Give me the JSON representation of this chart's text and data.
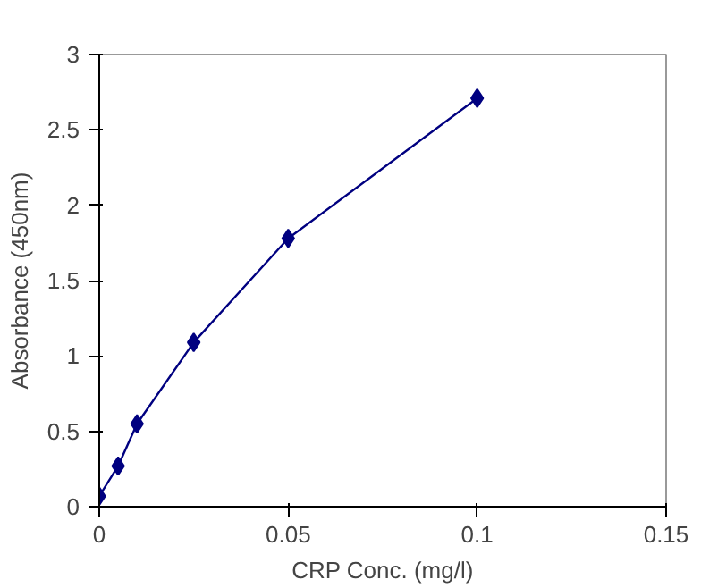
{
  "chart_data": {
    "type": "line",
    "xlabel": "CRP Conc. (mg/l)",
    "ylabel": "Absorbance (450nm)",
    "x": [
      0,
      0.005,
      0.01,
      0.025,
      0.05,
      0.1
    ],
    "series": [
      {
        "color": "#000080",
        "values": [
          0.07,
          0.27,
          0.55,
          1.09,
          1.78,
          2.71
        ]
      }
    ],
    "xlim": [
      0,
      0.15
    ],
    "xticks": [
      0,
      0.05,
      0.1,
      0.15
    ],
    "ylim": [
      0,
      3
    ],
    "yticks": [
      0,
      0.5,
      1,
      1.5,
      2,
      2.5,
      3
    ],
    "marker": "diamond",
    "line_style": "solid",
    "grid": false
  }
}
